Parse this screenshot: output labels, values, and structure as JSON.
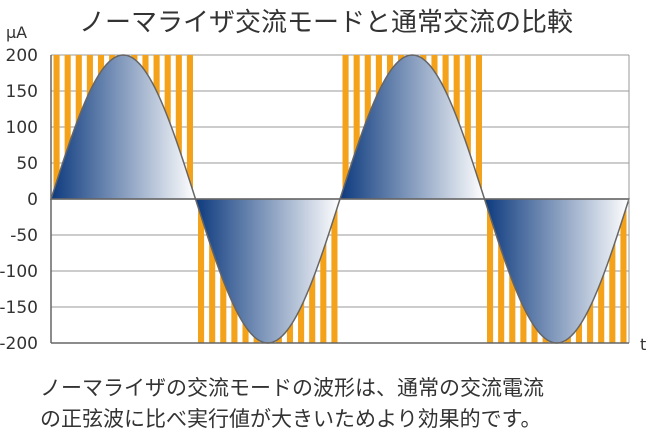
{
  "chart_data": {
    "type": "line",
    "title": "ノーマライザ交流モードと通常交流の比較",
    "ylabel": "μA",
    "xlabel": "t",
    "ylim": [
      -200,
      200
    ],
    "yticks": [
      200,
      150,
      100,
      50,
      0,
      -50,
      -100,
      -150,
      -200
    ],
    "yticks_labels": [
      "200",
      "150",
      "100",
      "50",
      "0",
      "-50",
      "-100",
      "-150",
      "-200"
    ],
    "grid": true,
    "series": [
      {
        "kind": "sine",
        "amplitude": 200,
        "half_cycles": 4,
        "fill": "gradient",
        "fill_colors": [
          "#0d3a7e",
          "#ffffff"
        ],
        "line_color": "#666666"
      },
      {
        "kind": "pulse-bands",
        "amplitude": 200,
        "pulse_count_per_half_cycle": 13,
        "color": "#f5a21b"
      }
    ]
  },
  "caption": {
    "line1": "ノーマライザの交流モードの波形は、通常の交流電流",
    "line2": "の正弦波に比べ実行値が大きいためより効果的です。"
  }
}
